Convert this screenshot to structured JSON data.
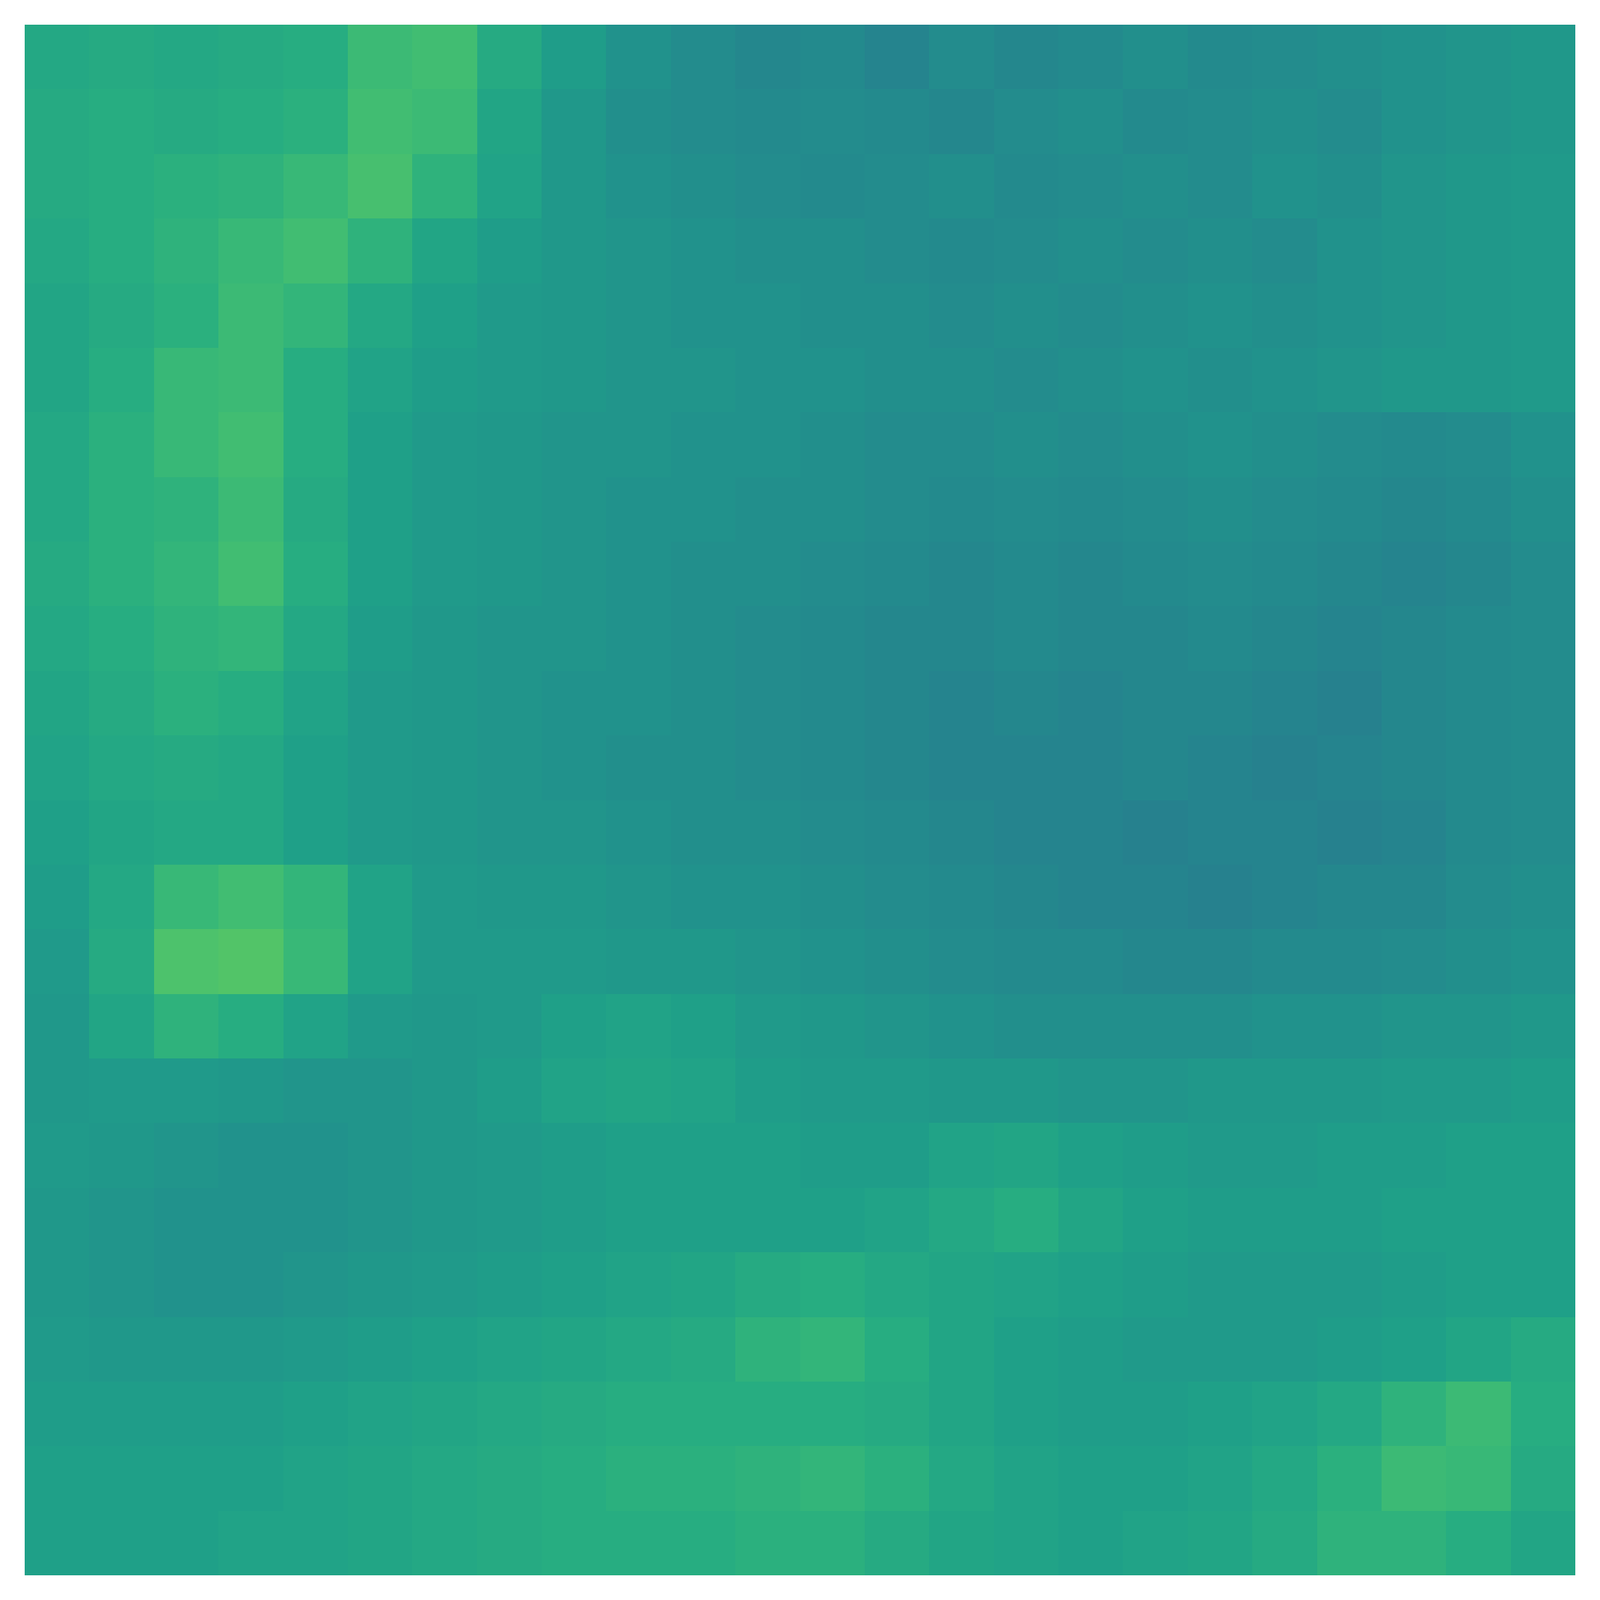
{
  "chart_data": {
    "type": "heatmap",
    "color": "viridis",
    "tick_labels": false,
    "grid": false,
    "zlim": [
      0.05,
      0.9
    ],
    "cells": [
      [
        0.56,
        0.57,
        0.56,
        0.57,
        0.58,
        0.63,
        0.64,
        0.57,
        0.52,
        0.48,
        0.46,
        0.44,
        0.45,
        0.43,
        0.46,
        0.44,
        0.45,
        0.47,
        0.45,
        0.46,
        0.47,
        0.48,
        0.49,
        0.5
      ],
      [
        0.57,
        0.58,
        0.57,
        0.58,
        0.59,
        0.64,
        0.63,
        0.55,
        0.5,
        0.47,
        0.46,
        0.45,
        0.46,
        0.45,
        0.44,
        0.46,
        0.47,
        0.45,
        0.46,
        0.47,
        0.46,
        0.48,
        0.49,
        0.5
      ],
      [
        0.57,
        0.58,
        0.59,
        0.6,
        0.62,
        0.65,
        0.6,
        0.54,
        0.5,
        0.48,
        0.47,
        0.46,
        0.45,
        0.46,
        0.47,
        0.45,
        0.46,
        0.47,
        0.46,
        0.48,
        0.47,
        0.49,
        0.5,
        0.51
      ],
      [
        0.56,
        0.58,
        0.6,
        0.62,
        0.64,
        0.6,
        0.55,
        0.52,
        0.5,
        0.49,
        0.48,
        0.47,
        0.47,
        0.46,
        0.45,
        0.46,
        0.47,
        0.46,
        0.47,
        0.46,
        0.48,
        0.49,
        0.5,
        0.51
      ],
      [
        0.55,
        0.57,
        0.59,
        0.63,
        0.61,
        0.56,
        0.53,
        0.51,
        0.5,
        0.49,
        0.48,
        0.48,
        0.47,
        0.47,
        0.46,
        0.47,
        0.46,
        0.47,
        0.48,
        0.47,
        0.48,
        0.49,
        0.5,
        0.51
      ],
      [
        0.55,
        0.58,
        0.62,
        0.63,
        0.58,
        0.54,
        0.52,
        0.51,
        0.5,
        0.49,
        0.49,
        0.48,
        0.48,
        0.47,
        0.47,
        0.46,
        0.47,
        0.48,
        0.47,
        0.48,
        0.49,
        0.5,
        0.5,
        0.51
      ],
      [
        0.56,
        0.59,
        0.62,
        0.64,
        0.58,
        0.53,
        0.51,
        0.5,
        0.49,
        0.49,
        0.48,
        0.48,
        0.47,
        0.46,
        0.46,
        0.47,
        0.46,
        0.47,
        0.48,
        0.47,
        0.46,
        0.45,
        0.46,
        0.48
      ],
      [
        0.56,
        0.59,
        0.6,
        0.63,
        0.57,
        0.53,
        0.51,
        0.5,
        0.49,
        0.48,
        0.48,
        0.47,
        0.47,
        0.46,
        0.45,
        0.46,
        0.45,
        0.46,
        0.47,
        0.46,
        0.45,
        0.44,
        0.45,
        0.47
      ],
      [
        0.57,
        0.59,
        0.61,
        0.64,
        0.58,
        0.53,
        0.51,
        0.5,
        0.49,
        0.48,
        0.47,
        0.47,
        0.46,
        0.45,
        0.44,
        0.45,
        0.44,
        0.45,
        0.46,
        0.45,
        0.44,
        0.43,
        0.44,
        0.46
      ],
      [
        0.56,
        0.58,
        0.6,
        0.61,
        0.56,
        0.52,
        0.5,
        0.49,
        0.49,
        0.48,
        0.47,
        0.46,
        0.45,
        0.44,
        0.44,
        0.45,
        0.44,
        0.44,
        0.45,
        0.44,
        0.43,
        0.44,
        0.45,
        0.46
      ],
      [
        0.55,
        0.57,
        0.59,
        0.58,
        0.54,
        0.51,
        0.5,
        0.49,
        0.48,
        0.48,
        0.47,
        0.46,
        0.45,
        0.44,
        0.43,
        0.44,
        0.43,
        0.44,
        0.44,
        0.43,
        0.42,
        0.44,
        0.45,
        0.46
      ],
      [
        0.54,
        0.56,
        0.57,
        0.56,
        0.53,
        0.51,
        0.5,
        0.49,
        0.48,
        0.47,
        0.47,
        0.46,
        0.45,
        0.44,
        0.43,
        0.43,
        0.43,
        0.44,
        0.43,
        0.42,
        0.43,
        0.44,
        0.45,
        0.46
      ],
      [
        0.53,
        0.55,
        0.56,
        0.56,
        0.53,
        0.51,
        0.5,
        0.49,
        0.49,
        0.48,
        0.47,
        0.47,
        0.46,
        0.45,
        0.44,
        0.43,
        0.43,
        0.42,
        0.43,
        0.43,
        0.42,
        0.43,
        0.45,
        0.46
      ],
      [
        0.52,
        0.56,
        0.62,
        0.64,
        0.61,
        0.54,
        0.51,
        0.5,
        0.5,
        0.49,
        0.48,
        0.48,
        0.47,
        0.46,
        0.45,
        0.44,
        0.43,
        0.43,
        0.42,
        0.43,
        0.44,
        0.44,
        0.46,
        0.47
      ],
      [
        0.51,
        0.57,
        0.66,
        0.67,
        0.62,
        0.54,
        0.51,
        0.51,
        0.51,
        0.5,
        0.5,
        0.49,
        0.48,
        0.47,
        0.46,
        0.45,
        0.45,
        0.44,
        0.44,
        0.45,
        0.45,
        0.46,
        0.47,
        0.48
      ],
      [
        0.5,
        0.55,
        0.6,
        0.58,
        0.54,
        0.51,
        0.5,
        0.51,
        0.53,
        0.54,
        0.53,
        0.51,
        0.5,
        0.49,
        0.48,
        0.47,
        0.47,
        0.47,
        0.47,
        0.48,
        0.48,
        0.49,
        0.49,
        0.5
      ],
      [
        0.5,
        0.51,
        0.51,
        0.5,
        0.49,
        0.49,
        0.5,
        0.52,
        0.54,
        0.55,
        0.54,
        0.52,
        0.51,
        0.51,
        0.5,
        0.5,
        0.49,
        0.49,
        0.5,
        0.5,
        0.5,
        0.51,
        0.51,
        0.52
      ],
      [
        0.51,
        0.5,
        0.49,
        0.48,
        0.48,
        0.49,
        0.5,
        0.51,
        0.52,
        0.53,
        0.53,
        0.53,
        0.52,
        0.52,
        0.54,
        0.55,
        0.53,
        0.52,
        0.51,
        0.51,
        0.52,
        0.52,
        0.53,
        0.53
      ],
      [
        0.5,
        0.49,
        0.48,
        0.48,
        0.48,
        0.49,
        0.5,
        0.51,
        0.52,
        0.53,
        0.53,
        0.53,
        0.53,
        0.54,
        0.56,
        0.58,
        0.55,
        0.53,
        0.52,
        0.52,
        0.52,
        0.53,
        0.53,
        0.53
      ],
      [
        0.5,
        0.49,
        0.48,
        0.48,
        0.49,
        0.5,
        0.51,
        0.52,
        0.53,
        0.54,
        0.55,
        0.57,
        0.58,
        0.56,
        0.55,
        0.54,
        0.53,
        0.52,
        0.51,
        0.51,
        0.51,
        0.52,
        0.53,
        0.53
      ],
      [
        0.51,
        0.5,
        0.5,
        0.5,
        0.51,
        0.52,
        0.53,
        0.54,
        0.55,
        0.56,
        0.57,
        0.6,
        0.61,
        0.58,
        0.55,
        0.53,
        0.52,
        0.51,
        0.51,
        0.51,
        0.52,
        0.53,
        0.55,
        0.57
      ],
      [
        0.52,
        0.52,
        0.52,
        0.52,
        0.53,
        0.54,
        0.55,
        0.56,
        0.57,
        0.58,
        0.58,
        0.58,
        0.58,
        0.57,
        0.55,
        0.53,
        0.52,
        0.52,
        0.53,
        0.54,
        0.56,
        0.6,
        0.63,
        0.58
      ],
      [
        0.53,
        0.53,
        0.53,
        0.53,
        0.54,
        0.55,
        0.56,
        0.57,
        0.58,
        0.59,
        0.59,
        0.6,
        0.61,
        0.59,
        0.56,
        0.54,
        0.53,
        0.53,
        0.54,
        0.56,
        0.59,
        0.63,
        0.62,
        0.57
      ],
      [
        0.53,
        0.53,
        0.53,
        0.54,
        0.54,
        0.55,
        0.56,
        0.57,
        0.58,
        0.58,
        0.58,
        0.59,
        0.59,
        0.57,
        0.55,
        0.54,
        0.53,
        0.54,
        0.55,
        0.57,
        0.6,
        0.6,
        0.58,
        0.55
      ]
    ]
  }
}
